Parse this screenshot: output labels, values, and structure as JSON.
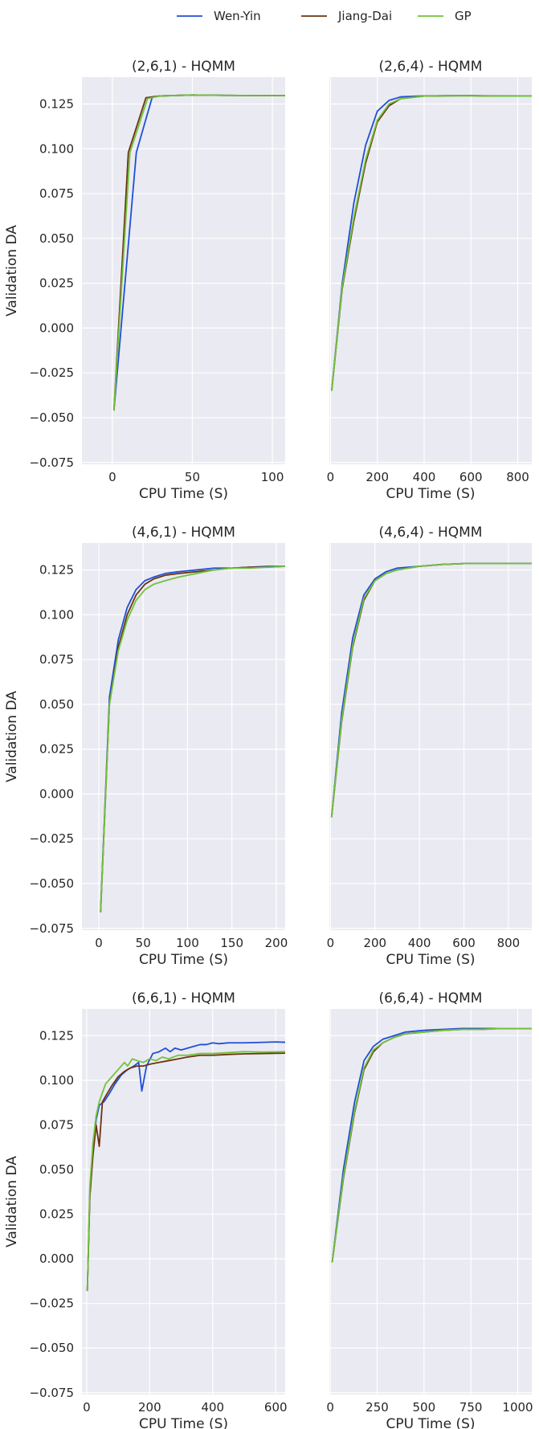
{
  "legend": {
    "placement": "top-center",
    "items": [
      {
        "name": "Wen-Yin",
        "color": "#1f4fd6"
      },
      {
        "name": "Jiang-Dai",
        "color": "#6b3410"
      },
      {
        "name": "GP",
        "color": "#72c23a"
      }
    ]
  },
  "chart_data": [
    {
      "type": "line",
      "title": "(2,6,1) - HQMM",
      "xlabel": "CPU Time (S)",
      "ylabel": "Validation DA",
      "xlim": [
        -19,
        108
      ],
      "ylim": [
        -0.076,
        0.14
      ],
      "xticks": [
        0,
        50,
        100
      ],
      "yticks": [
        -0.075,
        -0.05,
        -0.025,
        0,
        0.025,
        0.05,
        0.075,
        0.1,
        0.125
      ],
      "grid": true,
      "series": [
        {
          "name": "Wen-Yin",
          "color": "#1f4fd6",
          "x": [
            1,
            15,
            25,
            30,
            50,
            70,
            90,
            108
          ],
          "y": [
            -0.046,
            0.098,
            0.129,
            0.1295,
            0.13,
            0.1298,
            0.1297,
            0.1297
          ]
        },
        {
          "name": "Jiang-Dai",
          "color": "#6b3410",
          "x": [
            1,
            10,
            21,
            30,
            50,
            70,
            90,
            108
          ],
          "y": [
            -0.046,
            0.098,
            0.1285,
            0.1295,
            0.13,
            0.1298,
            0.1297,
            0.1297
          ]
        },
        {
          "name": "GP",
          "color": "#72c23a",
          "x": [
            1,
            11,
            22,
            30,
            50,
            70,
            90,
            108
          ],
          "y": [
            -0.046,
            0.098,
            0.128,
            0.1295,
            0.13,
            0.1298,
            0.1297,
            0.1297
          ]
        }
      ]
    },
    {
      "type": "line",
      "title": "(2,6,4) - HQMM",
      "xlabel": "CPU Time (S)",
      "ylabel": "",
      "xlim": [
        -5,
        860
      ],
      "ylim": [
        -0.076,
        0.14
      ],
      "xticks": [
        0,
        200,
        400,
        600,
        800
      ],
      "yticks": [
        -0.075,
        -0.05,
        -0.025,
        0,
        0.025,
        0.05,
        0.075,
        0.1,
        0.125
      ],
      "grid": true,
      "series": [
        {
          "name": "Wen-Yin",
          "color": "#1f4fd6",
          "x": [
            5,
            50,
            100,
            150,
            200,
            250,
            300,
            400,
            500,
            600,
            700,
            800,
            860
          ],
          "y": [
            -0.035,
            0.025,
            0.07,
            0.102,
            0.121,
            0.127,
            0.129,
            0.1295,
            0.1296,
            0.1297,
            0.1295,
            0.1294,
            0.1294
          ]
        },
        {
          "name": "Jiang-Dai",
          "color": "#6b3410",
          "x": [
            5,
            50,
            100,
            150,
            200,
            250,
            300,
            400,
            500,
            600,
            700,
            800,
            860
          ],
          "y": [
            -0.035,
            0.022,
            0.06,
            0.092,
            0.115,
            0.124,
            0.128,
            0.1294,
            0.1296,
            0.1296,
            0.1294,
            0.1294,
            0.1294
          ]
        },
        {
          "name": "GP",
          "color": "#72c23a",
          "x": [
            5,
            50,
            100,
            150,
            200,
            250,
            300,
            400,
            500,
            600,
            700,
            800,
            860
          ],
          "y": [
            -0.035,
            0.023,
            0.062,
            0.094,
            0.116,
            0.125,
            0.128,
            0.1294,
            0.1296,
            0.1296,
            0.1294,
            0.1294,
            0.1294
          ]
        }
      ]
    },
    {
      "type": "line",
      "title": "(4,6,1) - HQMM",
      "xlabel": "CPU Time (S)",
      "ylabel": "Validation DA",
      "xlim": [
        -19,
        210
      ],
      "ylim": [
        -0.076,
        0.14
      ],
      "xticks": [
        0,
        50,
        100,
        150,
        200
      ],
      "yticks": [
        -0.075,
        -0.05,
        -0.025,
        0,
        0.025,
        0.05,
        0.075,
        0.1,
        0.125
      ],
      "grid": true,
      "series": [
        {
          "name": "Wen-Yin",
          "color": "#1f4fd6",
          "x": [
            2,
            12,
            22,
            32,
            42,
            52,
            62,
            75,
            90,
            110,
            130,
            150,
            170,
            190,
            210
          ],
          "y": [
            -0.066,
            0.054,
            0.086,
            0.104,
            0.114,
            0.119,
            0.121,
            0.123,
            0.124,
            0.125,
            0.126,
            0.126,
            0.1265,
            0.127,
            0.127
          ]
        },
        {
          "name": "Jiang-Dai",
          "color": "#6b3410",
          "x": [
            2,
            12,
            22,
            32,
            42,
            52,
            62,
            75,
            90,
            110,
            130,
            150,
            170,
            190,
            210
          ],
          "y": [
            -0.066,
            0.05,
            0.082,
            0.1,
            0.111,
            0.117,
            0.12,
            0.122,
            0.123,
            0.124,
            0.125,
            0.126,
            0.1265,
            0.1265,
            0.127
          ]
        },
        {
          "name": "GP",
          "color": "#72c23a",
          "x": [
            2,
            12,
            22,
            32,
            42,
            52,
            62,
            75,
            90,
            110,
            130,
            150,
            170,
            190,
            210
          ],
          "y": [
            -0.066,
            0.05,
            0.08,
            0.097,
            0.108,
            0.114,
            0.117,
            0.119,
            0.121,
            0.123,
            0.125,
            0.126,
            0.126,
            0.1265,
            0.127
          ]
        }
      ]
    },
    {
      "type": "line",
      "title": "(4,6,4) - HQMM",
      "xlabel": "CPU Time (S)",
      "ylabel": "",
      "xlim": [
        -5,
        905
      ],
      "ylim": [
        -0.076,
        0.14
      ],
      "xticks": [
        0,
        200,
        400,
        600,
        800
      ],
      "yticks": [
        -0.075,
        -0.05,
        -0.025,
        0,
        0.025,
        0.05,
        0.075,
        0.1,
        0.125
      ],
      "grid": true,
      "series": [
        {
          "name": "Wen-Yin",
          "color": "#1f4fd6",
          "x": [
            5,
            50,
            100,
            150,
            200,
            250,
            300,
            400,
            500,
            600,
            700,
            800,
            905
          ],
          "y": [
            -0.013,
            0.045,
            0.087,
            0.111,
            0.12,
            0.124,
            0.126,
            0.127,
            0.128,
            0.1285,
            0.1285,
            0.1285,
            0.1285
          ]
        },
        {
          "name": "Jiang-Dai",
          "color": "#6b3410",
          "x": [
            5,
            50,
            100,
            150,
            200,
            250,
            300,
            400,
            500,
            600,
            700,
            800,
            905
          ],
          "y": [
            -0.013,
            0.04,
            0.082,
            0.108,
            0.119,
            0.123,
            0.125,
            0.127,
            0.128,
            0.1285,
            0.1285,
            0.1285,
            0.1285
          ]
        },
        {
          "name": "GP",
          "color": "#72c23a",
          "x": [
            5,
            50,
            100,
            150,
            200,
            250,
            300,
            400,
            500,
            600,
            700,
            800,
            905
          ],
          "y": [
            -0.013,
            0.041,
            0.083,
            0.109,
            0.119,
            0.123,
            0.125,
            0.127,
            0.128,
            0.1285,
            0.1285,
            0.1285,
            0.1285
          ]
        }
      ]
    },
    {
      "type": "line",
      "title": "(6,6,1) - HQMM",
      "xlabel": "CPU Time (S)",
      "ylabel": "Validation DA",
      "xlim": [
        -15,
        630
      ],
      "ylim": [
        -0.076,
        0.14
      ],
      "xticks": [
        0,
        200,
        400,
        600
      ],
      "yticks": [
        -0.075,
        -0.05,
        -0.025,
        0,
        0.025,
        0.05,
        0.075,
        0.1,
        0.125
      ],
      "grid": true,
      "series": [
        {
          "name": "Wen-Yin",
          "color": "#1f4fd6",
          "x": [
            2,
            10,
            20,
            30,
            40,
            55,
            70,
            90,
            110,
            130,
            150,
            165,
            175,
            190,
            210,
            230,
            250,
            265,
            280,
            300,
            320,
            340,
            360,
            380,
            400,
            420,
            450,
            500,
            550,
            600,
            630
          ],
          "y": [
            -0.018,
            0.035,
            0.06,
            0.078,
            0.086,
            0.088,
            0.092,
            0.098,
            0.103,
            0.106,
            0.108,
            0.11,
            0.094,
            0.108,
            0.115,
            0.116,
            0.118,
            0.116,
            0.118,
            0.117,
            0.118,
            0.119,
            0.12,
            0.12,
            0.121,
            0.1205,
            0.121,
            0.121,
            0.1212,
            0.1215,
            0.1213
          ]
        },
        {
          "name": "Jiang-Dai",
          "color": "#6b3410",
          "x": [
            2,
            10,
            20,
            30,
            40,
            50,
            60,
            80,
            100,
            120,
            140,
            160,
            180,
            200,
            230,
            260,
            290,
            320,
            360,
            400,
            450,
            500,
            560,
            630
          ],
          "y": [
            -0.018,
            0.035,
            0.058,
            0.075,
            0.063,
            0.088,
            0.091,
            0.097,
            0.102,
            0.105,
            0.107,
            0.108,
            0.108,
            0.109,
            0.11,
            0.111,
            0.112,
            0.113,
            0.114,
            0.114,
            0.1145,
            0.1148,
            0.115,
            0.1152
          ]
        },
        {
          "name": "GP",
          "color": "#72c23a",
          "x": [
            2,
            10,
            20,
            30,
            40,
            50,
            60,
            80,
            100,
            120,
            130,
            145,
            160,
            180,
            200,
            220,
            240,
            260,
            290,
            320,
            360,
            400,
            450,
            500,
            560,
            630
          ],
          "y": [
            -0.018,
            0.04,
            0.065,
            0.08,
            0.088,
            0.093,
            0.098,
            0.102,
            0.106,
            0.11,
            0.108,
            0.112,
            0.111,
            0.11,
            0.112,
            0.111,
            0.113,
            0.112,
            0.114,
            0.114,
            0.115,
            0.115,
            0.1155,
            0.116,
            0.1158,
            0.116
          ]
        }
      ]
    },
    {
      "type": "line",
      "title": "(6,6,4) - HQMM",
      "xlabel": "CPU Time (S)",
      "ylabel": "",
      "xlim": [
        -5,
        1075
      ],
      "ylim": [
        -0.076,
        0.14
      ],
      "xticks": [
        0,
        250,
        500,
        750,
        1000
      ],
      "yticks": [
        -0.075,
        -0.05,
        -0.025,
        0,
        0.025,
        0.05,
        0.075,
        0.1,
        0.125
      ],
      "grid": true,
      "series": [
        {
          "name": "Wen-Yin",
          "color": "#1f4fd6",
          "x": [
            10,
            70,
            130,
            180,
            230,
            280,
            340,
            400,
            500,
            600,
            700,
            800,
            900,
            1000,
            1075
          ],
          "y": [
            -0.002,
            0.05,
            0.088,
            0.111,
            0.119,
            0.123,
            0.125,
            0.127,
            0.128,
            0.1285,
            0.129,
            0.129,
            0.129,
            0.129,
            0.129
          ]
        },
        {
          "name": "Jiang-Dai",
          "color": "#6b3410",
          "x": [
            10,
            70,
            130,
            180,
            230,
            280,
            340,
            400,
            500,
            600,
            700,
            800,
            900,
            1000,
            1075
          ],
          "y": [
            -0.002,
            0.045,
            0.082,
            0.106,
            0.116,
            0.121,
            0.124,
            0.126,
            0.127,
            0.128,
            0.1285,
            0.1285,
            0.129,
            0.129,
            0.129
          ]
        },
        {
          "name": "GP",
          "color": "#72c23a",
          "x": [
            10,
            70,
            130,
            180,
            230,
            280,
            340,
            400,
            500,
            600,
            700,
            800,
            900,
            1000,
            1075
          ],
          "y": [
            -0.002,
            0.046,
            0.083,
            0.107,
            0.117,
            0.121,
            0.124,
            0.126,
            0.127,
            0.128,
            0.1285,
            0.1285,
            0.129,
            0.129,
            0.129
          ]
        }
      ]
    }
  ]
}
